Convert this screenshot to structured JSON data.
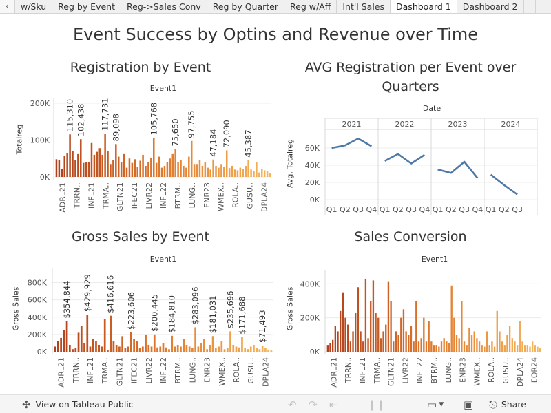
{
  "tabs": [
    {
      "label": "w/Sku",
      "active": false
    },
    {
      "label": "Reg by Event",
      "active": false
    },
    {
      "label": "Reg->Sales Conv",
      "active": false
    },
    {
      "label": "Reg by Quarter",
      "active": false
    },
    {
      "label": "Reg w/Aff",
      "active": false
    },
    {
      "label": "Int'l Sales",
      "active": false
    },
    {
      "label": "Dashboard 1",
      "active": true
    },
    {
      "label": "Dashboard 2",
      "active": false
    }
  ],
  "dashboard": {
    "title": "Event Success by Optins and Revenue over Time"
  },
  "panels": {
    "reg": {
      "title": "Registration by Event",
      "header": "Event1",
      "ylabel": "Totalreg"
    },
    "avg": {
      "title_line1": "AVG Registration per Event over",
      "title_line2": "Quarters",
      "header": "Date",
      "ylabel": "Avg. Totalreg"
    },
    "gross": {
      "title": "Gross Sales by Event",
      "header": "Event1",
      "ylabel": "Gross Sales"
    },
    "conv": {
      "title": "Sales Conversion",
      "header": "Event1",
      "ylabel": "Gross Sales"
    }
  },
  "footer": {
    "view_label": "View on Tableau Public",
    "share_label": "Share",
    "icons": [
      "tableau-logo-icon",
      "undo-icon",
      "redo-icon",
      "revert-icon",
      "download-icon",
      "fullscreen-icon",
      "share-icon"
    ]
  },
  "colors": {
    "bar_dark": "#b0401b",
    "bar_mid": "#e07a2c",
    "bar_light": "#f5b65a",
    "line": "#4e79a7",
    "grid": "#ececec"
  },
  "chart_data": [
    {
      "id": "reg",
      "type": "bar",
      "title": "Registration by Event",
      "header": "Event1",
      "xlabel": "",
      "ylabel": "Totalreg",
      "ylim": [
        0,
        200000
      ],
      "yticks": [
        {
          "value": 0,
          "label": "0K"
        },
        {
          "value": 100000,
          "label": "100K"
        },
        {
          "value": 200000,
          "label": "200K"
        }
      ],
      "category_labels": [
        "ADRL21",
        "TRRN..",
        "INFL21",
        "TRMA..",
        "GLTN21",
        "IFEC21",
        "LIVR22",
        "INFL22",
        "BTRM..",
        "LUNG..",
        "ENR23",
        "WMEX..",
        "ROLA..",
        "GUSU..",
        "DPLA24"
      ],
      "values": [
        48000,
        45000,
        22000,
        58000,
        65000,
        115310,
        70000,
        45000,
        62000,
        102438,
        38000,
        40000,
        40000,
        92000,
        60000,
        68000,
        78000,
        60000,
        117731,
        70000,
        35000,
        45000,
        89098,
        55000,
        40000,
        62000,
        25000,
        50000,
        38000,
        48000,
        28000,
        44000,
        60000,
        30000,
        40000,
        52000,
        105768,
        38000,
        55000,
        25000,
        30000,
        40000,
        50000,
        62000,
        75650,
        40000,
        45000,
        30000,
        25000,
        55000,
        97755,
        35000,
        35000,
        45000,
        30000,
        40000,
        25000,
        20000,
        47184,
        30000,
        25000,
        35000,
        28000,
        72090,
        24000,
        30000,
        20000,
        18000,
        25000,
        22000,
        30000,
        45387,
        20000,
        15000,
        40000,
        12000,
        22000,
        18000,
        15000,
        10000
      ],
      "data_labels": [
        {
          "index": 5,
          "value": 115310,
          "text": "115,310"
        },
        {
          "index": 9,
          "value": 102438,
          "text": "102,438"
        },
        {
          "index": 18,
          "value": 117731,
          "text": "117,731"
        },
        {
          "index": 22,
          "value": 89098,
          "text": "89,098"
        },
        {
          "index": 36,
          "value": 105768,
          "text": "105,768"
        },
        {
          "index": 44,
          "value": 75650,
          "text": "75,650"
        },
        {
          "index": 50,
          "value": 97755,
          "text": "97,755"
        },
        {
          "index": 58,
          "value": 47184,
          "text": "47,184"
        },
        {
          "index": 63,
          "value": 72090,
          "text": "72,090"
        },
        {
          "index": 71,
          "value": 45387,
          "text": "45,387"
        }
      ]
    },
    {
      "id": "avg",
      "type": "line",
      "title": "AVG Registration per Event over Quarters",
      "header": "Date",
      "ylabel": "Avg. Totalreg",
      "ylim": [
        0,
        80000
      ],
      "yticks": [
        {
          "value": 0,
          "label": "0K"
        },
        {
          "value": 20000,
          "label": "20K"
        },
        {
          "value": 40000,
          "label": "40K"
        },
        {
          "value": 60000,
          "label": "60K"
        }
      ],
      "series": [
        {
          "name": "2021",
          "quarters": [
            "Q1",
            "Q2",
            "Q3",
            "Q4"
          ],
          "values": [
            60000,
            63000,
            71000,
            62000
          ]
        },
        {
          "name": "2022",
          "quarters": [
            "Q1",
            "Q2",
            "Q3",
            "Q4"
          ],
          "values": [
            45000,
            53000,
            42000,
            52000
          ]
        },
        {
          "name": "2023",
          "quarters": [
            "Q1",
            "Q2",
            "Q3",
            "Q4"
          ],
          "values": [
            35000,
            31000,
            44000,
            25000
          ]
        },
        {
          "name": "2024",
          "quarters": [
            "Q1",
            "Q2",
            "Q3"
          ],
          "values": [
            29000,
            17000,
            6000
          ]
        }
      ]
    },
    {
      "id": "gross",
      "type": "bar",
      "title": "Gross Sales by Event",
      "header": "Event1",
      "xlabel": "",
      "ylabel": "Gross Sales",
      "ylim": [
        0,
        900000
      ],
      "yticks": [
        {
          "value": 0,
          "label": "0K"
        },
        {
          "value": 200000,
          "label": "200K"
        },
        {
          "value": 400000,
          "label": "400K"
        },
        {
          "value": 600000,
          "label": "600K"
        },
        {
          "value": 800000,
          "label": "800K"
        }
      ],
      "category_labels": [
        "ADRL21",
        "TRRN..",
        "INFL21",
        "TRMA..",
        "GLTN21",
        "IFEC21",
        "LIVR22",
        "INFL22",
        "BTRM..",
        "LUNG..",
        "ENR23",
        "WMEX..",
        "ROLA..",
        "GUSU..",
        "DPLA24"
      ],
      "values": [
        60000,
        120000,
        160000,
        250000,
        354844,
        80000,
        30000,
        40000,
        220000,
        300000,
        100000,
        429929,
        60000,
        150000,
        120000,
        80000,
        60000,
        380000,
        20000,
        416616,
        120000,
        80000,
        60000,
        180000,
        40000,
        60000,
        223606,
        150000,
        120000,
        40000,
        60000,
        200000,
        80000,
        60000,
        200445,
        50000,
        60000,
        100000,
        50000,
        30000,
        184810,
        60000,
        80000,
        60000,
        150000,
        80000,
        60000,
        40000,
        283096,
        60000,
        100000,
        150000,
        30000,
        80000,
        181031,
        40000,
        60000,
        120000,
        30000,
        40000,
        235696,
        80000,
        60000,
        50000,
        171688,
        40000,
        30000,
        60000,
        80000,
        40000,
        30000,
        71493,
        40000,
        25000,
        15000
      ],
      "data_labels": [
        {
          "index": 4,
          "value": 354844,
          "text": "$354,844"
        },
        {
          "index": 11,
          "value": 429929,
          "text": "$429,929"
        },
        {
          "index": 19,
          "value": 416616,
          "text": "$416,616"
        },
        {
          "index": 26,
          "value": 223606,
          "text": "$223,606"
        },
        {
          "index": 34,
          "value": 200445,
          "text": "$200,445"
        },
        {
          "index": 40,
          "value": 184810,
          "text": "$184,810"
        },
        {
          "index": 48,
          "value": 283096,
          "text": "$283,096"
        },
        {
          "index": 54,
          "value": 181031,
          "text": "$181,031"
        },
        {
          "index": 60,
          "value": 235696,
          "text": "$235,696"
        },
        {
          "index": 64,
          "value": 171688,
          "text": "$171,688"
        },
        {
          "index": 71,
          "value": 71493,
          "text": "$71,493"
        }
      ]
    },
    {
      "id": "conv",
      "type": "bar",
      "title": "Sales Conversion",
      "header": "Event1",
      "xlabel": "",
      "ylabel": "Gross Sales",
      "ylim": [
        0,
        450000
      ],
      "yticks": [
        {
          "value": 0,
          "label": "0K"
        },
        {
          "value": 200000,
          "label": "200K"
        },
        {
          "value": 400000,
          "label": "400K"
        }
      ],
      "category_labels": [
        "ADRL21",
        "TRRN..",
        "INFL21",
        "TRMA..",
        "GLTN21",
        "LIVR22",
        "INFL22",
        "BTRM..",
        "LUNG..",
        "ENR23",
        "WMEX..",
        "ROLA..",
        "GUSU..",
        "DPLA24",
        "EOR24"
      ],
      "values": [
        40000,
        50000,
        70000,
        150000,
        120000,
        240000,
        350000,
        200000,
        160000,
        60000,
        120000,
        230000,
        380000,
        120000,
        60000,
        430000,
        80000,
        300000,
        420000,
        230000,
        200000,
        80000,
        120000,
        160000,
        415000,
        300000,
        60000,
        120000,
        100000,
        200000,
        250000,
        120000,
        100000,
        150000,
        60000,
        300000,
        60000,
        80000,
        200000,
        60000,
        180000,
        60000,
        40000,
        40000,
        30000,
        60000,
        80000,
        60000,
        50000,
        390000,
        200000,
        100000,
        80000,
        300000,
        60000,
        40000,
        140000,
        100000,
        120000,
        80000,
        60000,
        40000,
        30000,
        120000,
        40000,
        60000,
        30000,
        240000,
        120000,
        60000,
        40000,
        100000,
        150000,
        80000,
        60000,
        40000,
        180000,
        60000,
        40000,
        40000,
        30000,
        60000,
        40000,
        30000,
        20000
      ]
    }
  ]
}
